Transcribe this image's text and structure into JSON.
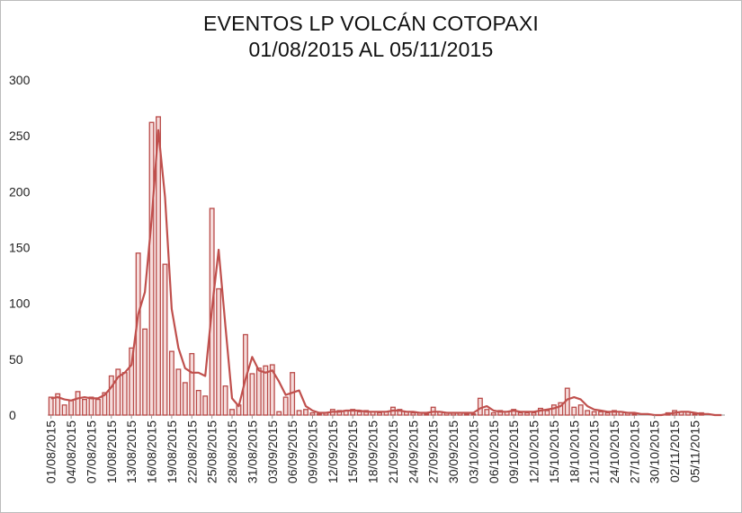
{
  "chart_data": {
    "type": "bar",
    "title": "EVENTOS LP  VOLCÁN COTOPAXI",
    "subtitle": "01/08/2015 AL 05/11/2015",
    "xlabel": "",
    "ylabel": "",
    "ylim": [
      0,
      300
    ],
    "y_ticks": [
      "0",
      "50",
      "100",
      "150",
      "200",
      "250",
      "300"
    ],
    "x_tick_labels": [
      "01/08/2015",
      "04/08/2015",
      "07/08/2015",
      "10/08/2015",
      "13/08/2015",
      "16/08/2015",
      "19/08/2015",
      "22/08/2015",
      "25/08/2015",
      "28/08/2015",
      "31/08/2015",
      "03/09/2015",
      "06/09/2015",
      "09/09/2015",
      "12/09/2015",
      "15/09/2015",
      "18/09/2015",
      "21/09/2015",
      "24/09/2015",
      "27/09/2015",
      "30/09/2015",
      "03/10/2015",
      "06/10/2015",
      "09/10/2015",
      "12/10/2015",
      "15/10/2015",
      "18/10/2015",
      "21/10/2015",
      "24/10/2015",
      "27/10/2015",
      "30/10/2015",
      "02/11/2015",
      "05/11/2015"
    ],
    "start_date": "01/08/2015",
    "end_date": "05/11/2015",
    "grid": false,
    "legend": "none",
    "series": [
      {
        "type": "bar",
        "color": "#b94a48",
        "values": [
          16,
          19,
          9,
          13,
          21,
          14,
          16,
          14,
          20,
          35,
          41,
          38,
          60,
          145,
          77,
          262,
          267,
          135,
          57,
          41,
          29,
          55,
          22,
          17,
          185,
          113,
          26,
          5,
          9,
          72,
          37,
          42,
          44,
          45,
          3,
          16,
          38,
          4,
          5,
          2,
          1,
          2,
          5,
          4,
          4,
          5,
          3,
          4,
          3,
          2,
          3,
          7,
          5,
          3,
          2,
          2,
          1,
          7,
          3,
          2,
          2,
          2,
          1,
          1,
          15,
          5,
          2,
          4,
          3,
          5,
          2,
          2,
          2,
          6,
          4,
          9,
          11,
          24,
          7,
          9,
          4,
          3,
          3,
          2,
          4,
          3,
          2,
          1,
          0,
          0,
          0,
          0,
          2,
          4,
          3,
          3,
          1,
          2,
          0,
          0,
          0
        ]
      },
      {
        "type": "line",
        "color": "#c0504d",
        "values": [
          15,
          16,
          14,
          13,
          15,
          16,
          15,
          15,
          18,
          25,
          34,
          38,
          45,
          90,
          110,
          175,
          255,
          195,
          95,
          60,
          42,
          38,
          38,
          35,
          95,
          148,
          80,
          15,
          8,
          32,
          52,
          40,
          38,
          40,
          30,
          18,
          20,
          22,
          8,
          4,
          2,
          2,
          3,
          3,
          4,
          4,
          4,
          3,
          3,
          3,
          3,
          4,
          4,
          3,
          3,
          2,
          2,
          3,
          3,
          2,
          2,
          2,
          2,
          2,
          6,
          8,
          4,
          3,
          3,
          4,
          3,
          3,
          3,
          4,
          5,
          6,
          8,
          14,
          16,
          14,
          8,
          5,
          4,
          3,
          3,
          3,
          2,
          2,
          1,
          1,
          0,
          0,
          1,
          2,
          3,
          3,
          2,
          1,
          1,
          0,
          0
        ]
      }
    ]
  }
}
